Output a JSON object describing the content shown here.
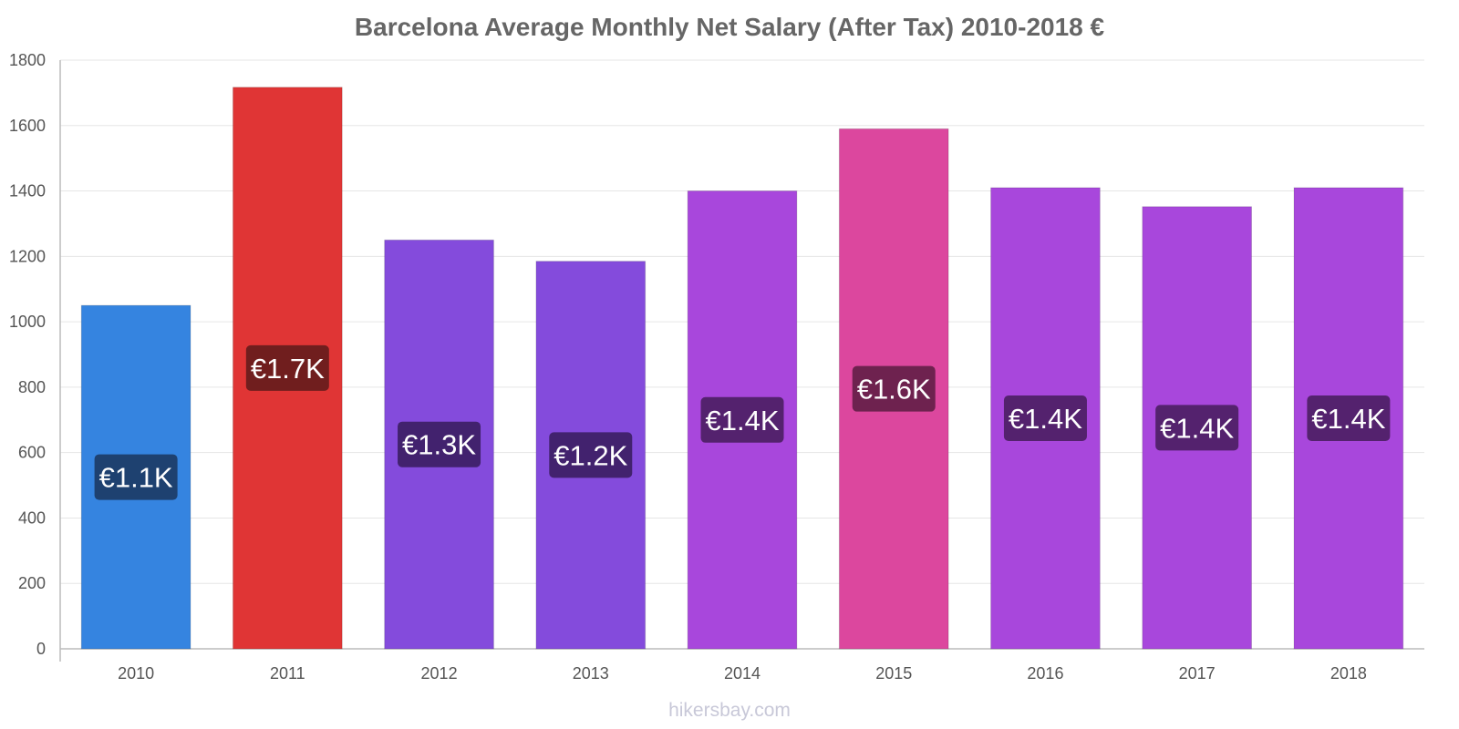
{
  "page": {
    "title": "Barcelona Average Monthly Net Salary (After Tax) 2010-2018 €",
    "watermark": "hikersbay.com"
  },
  "chart_data": {
    "type": "bar",
    "title": "Barcelona Average Monthly Net Salary (After Tax) 2010-2018 €",
    "xlabel": "",
    "ylabel": "",
    "ylim": [
      0,
      1800
    ],
    "yticks": [
      0,
      200,
      400,
      600,
      800,
      1000,
      1200,
      1400,
      1600,
      1800
    ],
    "grid": true,
    "legend": "none",
    "categories": [
      "2010",
      "2011",
      "2012",
      "2013",
      "2014",
      "2015",
      "2016",
      "2017",
      "2018"
    ],
    "values": [
      1050,
      1717,
      1250,
      1185,
      1400,
      1590,
      1410,
      1352,
      1410
    ],
    "data_labels": [
      "€1.1K",
      "€1.7K",
      "€1.3K",
      "€1.2K",
      "€1.4K",
      "€1.6K",
      "€1.4K",
      "€1.4K",
      "€1.4K"
    ],
    "bar_colors": [
      "#3584e0",
      "#e03535",
      "#844bdc",
      "#844bdc",
      "#a847dc",
      "#dc479e",
      "#a847dc",
      "#a847dc",
      "#a847dc"
    ],
    "label_bg_colors": [
      "#1e4170",
      "#701e1e",
      "#42226e",
      "#42226e",
      "#54226e",
      "#6e224f",
      "#54226e",
      "#54226e",
      "#54226e"
    ]
  }
}
